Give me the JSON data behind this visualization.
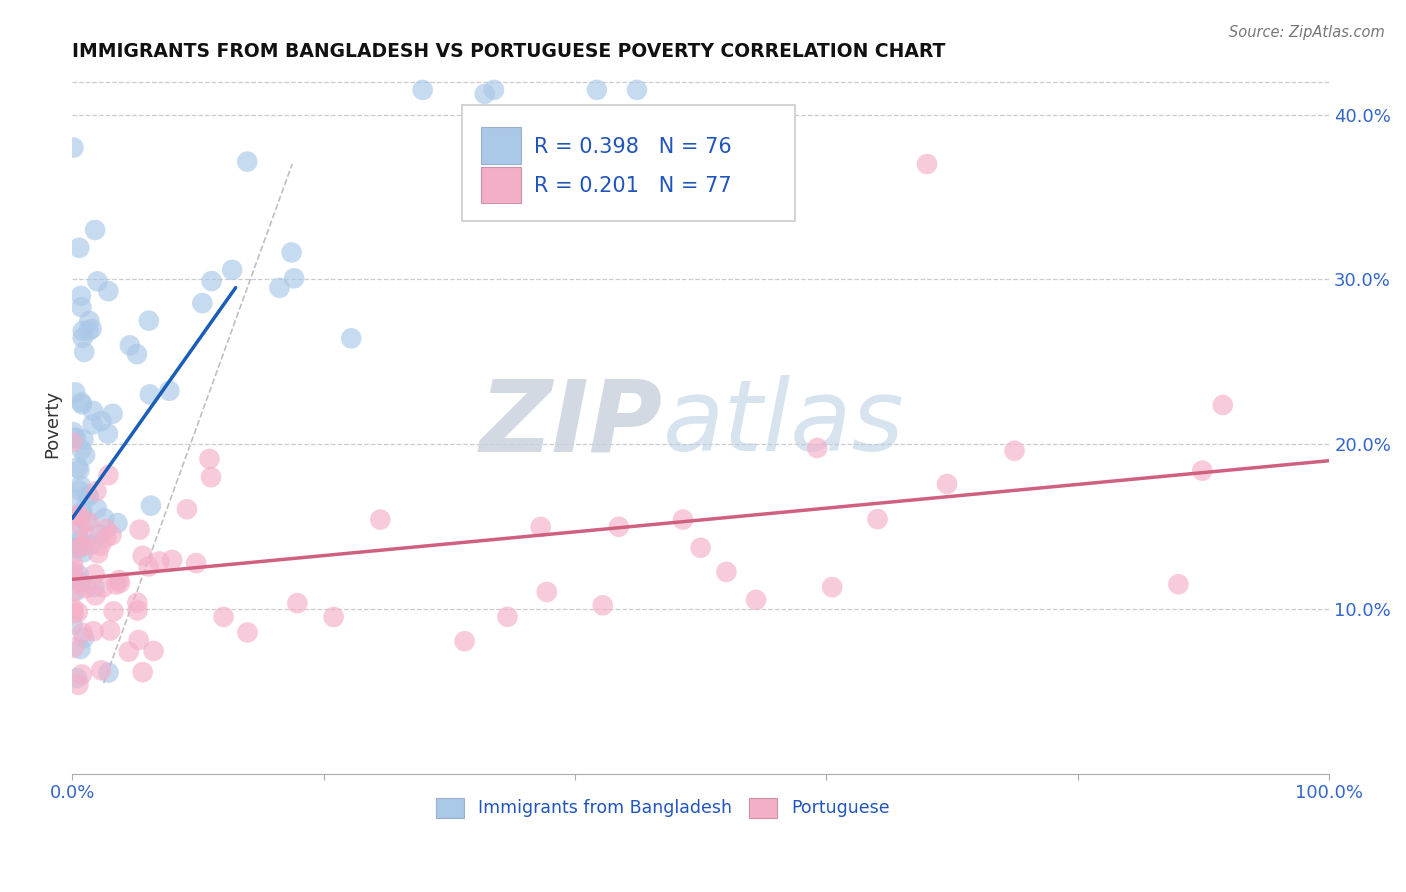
{
  "title": "IMMIGRANTS FROM BANGLADESH VS PORTUGUESE POVERTY CORRELATION CHART",
  "source": "Source: ZipAtlas.com",
  "ylabel_label": "Poverty",
  "x_min": 0.0,
  "x_max": 1.0,
  "y_min": 0.0,
  "y_max": 0.425,
  "x_ticks": [
    0.0,
    0.2,
    0.4,
    0.6,
    0.8,
    1.0
  ],
  "x_tick_labels": [
    "0.0%",
    "",
    "",
    "",
    "",
    "100.0%"
  ],
  "y_ticks": [
    0.1,
    0.2,
    0.3,
    0.4
  ],
  "y_tick_labels": [
    "10.0%",
    "20.0%",
    "30.0%",
    "40.0%"
  ],
  "legend1_r": "R = 0.398",
  "legend1_n": "N = 76",
  "legend2_r": "R = 0.201",
  "legend2_n": "N = 77",
  "color_blue": "#aac8e8",
  "color_pink": "#f4afc8",
  "line_blue": "#1a5eb8",
  "line_pink": "#d06080",
  "watermark_zip": "ZIP",
  "watermark_atlas": "atlas",
  "background_color": "#ffffff",
  "blue_line_x": [
    0.0,
    0.13
  ],
  "blue_line_y": [
    0.155,
    0.295
  ],
  "pink_line_x": [
    0.0,
    1.0
  ],
  "pink_line_y": [
    0.118,
    0.19
  ],
  "diag_line_x": [
    0.025,
    0.175
  ],
  "diag_line_y": [
    0.055,
    0.37
  ]
}
